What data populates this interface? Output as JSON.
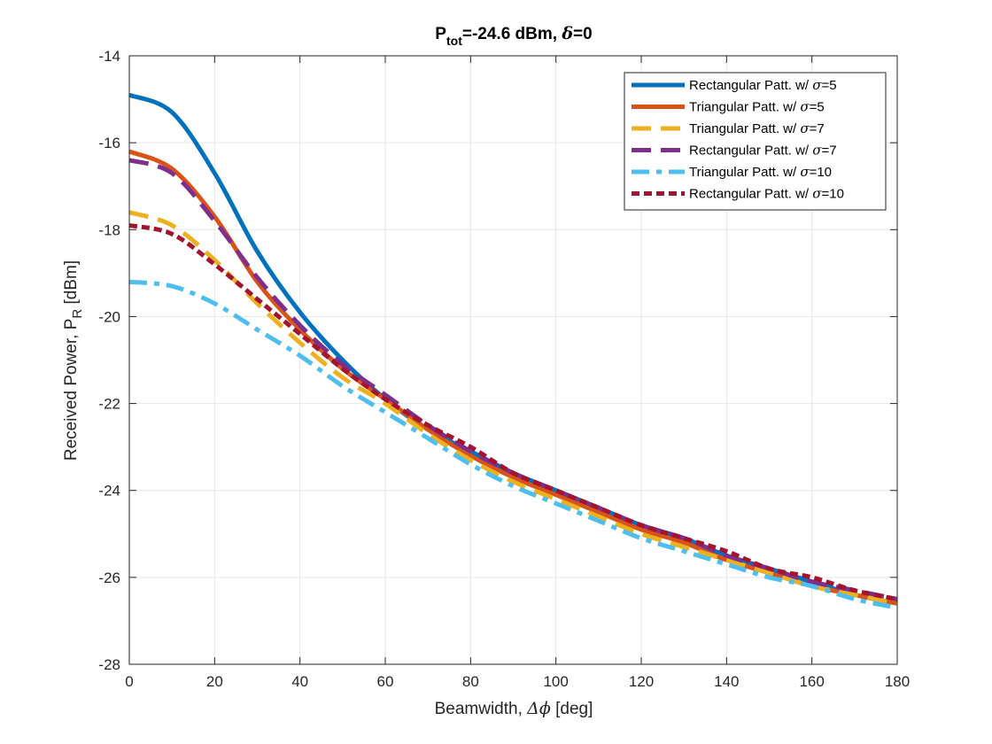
{
  "chart_data": {
    "type": "line",
    "title": "P_tot=-24.6 dBm, δ=0",
    "title_parts": {
      "main": "P",
      "sub": "tot",
      "rest": "=-24.6 dBm, ",
      "delta": "δ",
      "tail": "=0"
    },
    "xlabel": "Beamwidth, Δϕ [deg]",
    "xlabel_parts": {
      "prefix": "Beamwidth, ",
      "sym": "Δϕ",
      "suffix": " [deg]"
    },
    "ylabel": "Received Power, P_R [dBm]",
    "ylabel_parts": {
      "prefix": "Received Power, P",
      "sub": "R",
      "suffix": " [dBm]"
    },
    "xlim": [
      0,
      180
    ],
    "ylim": [
      -28,
      -14
    ],
    "xticks": [
      0,
      20,
      40,
      60,
      80,
      100,
      120,
      140,
      160,
      180
    ],
    "yticks": [
      -28,
      -26,
      -24,
      -22,
      -20,
      -18,
      -16,
      -14
    ],
    "grid": true,
    "legend_position": "top-right",
    "x": [
      0,
      10,
      20,
      30,
      40,
      50,
      60,
      70,
      80,
      90,
      100,
      110,
      120,
      130,
      140,
      150,
      160,
      170,
      180
    ],
    "series": [
      {
        "name": "Rectangular Patt. w/ σ=5",
        "label_prefix": "Rectangular Patt. w/ ",
        "sigma": "σ",
        "label_suffix": "=5",
        "color": "#0072BD",
        "style": "solid",
        "values": [
          -14.9,
          -15.3,
          -16.7,
          -18.5,
          -19.9,
          -21.0,
          -21.9,
          -22.6,
          -23.1,
          -23.6,
          -24.0,
          -24.4,
          -24.8,
          -25.1,
          -25.5,
          -25.8,
          -26.1,
          -26.4,
          -26.6
        ]
      },
      {
        "name": "Triangular Patt. w/ σ=5",
        "label_prefix": "Triangular Patt. w/ ",
        "sigma": "σ",
        "label_suffix": "=5",
        "color": "#D95319",
        "style": "solid",
        "values": [
          -16.2,
          -16.6,
          -17.7,
          -19.2,
          -20.3,
          -21.2,
          -21.9,
          -22.6,
          -23.2,
          -23.7,
          -24.1,
          -24.5,
          -24.9,
          -25.2,
          -25.6,
          -25.9,
          -26.2,
          -26.4,
          -26.6
        ]
      },
      {
        "name": "Triangular Patt. w/ σ=7",
        "label_prefix": "Triangular Patt. w/ ",
        "sigma": "σ",
        "label_suffix": "=7",
        "color": "#EDB120",
        "style": "dashed",
        "values": [
          -17.6,
          -17.9,
          -18.7,
          -19.7,
          -20.6,
          -21.4,
          -22.0,
          -22.7,
          -23.3,
          -23.8,
          -24.2,
          -24.6,
          -25.0,
          -25.3,
          -25.6,
          -25.9,
          -26.2,
          -26.4,
          -26.6
        ]
      },
      {
        "name": "Rectangular Patt. w/ σ=7",
        "label_prefix": "Rectangular Patt. w/ ",
        "sigma": "σ",
        "label_suffix": "=7",
        "color": "#7E2F8E",
        "style": "dashed",
        "values": [
          -16.4,
          -16.7,
          -17.8,
          -19.1,
          -20.2,
          -21.1,
          -21.8,
          -22.5,
          -23.1,
          -23.6,
          -24.0,
          -24.4,
          -24.8,
          -25.1,
          -25.5,
          -25.8,
          -26.1,
          -26.3,
          -26.5
        ]
      },
      {
        "name": "Triangular Patt. w/ σ=10",
        "label_prefix": "Triangular Patt. w/ ",
        "sigma": "σ",
        "label_suffix": "=10",
        "color": "#4DBEEE",
        "style": "dashdot",
        "values": [
          -19.2,
          -19.3,
          -19.7,
          -20.3,
          -20.9,
          -21.6,
          -22.2,
          -22.8,
          -23.4,
          -23.9,
          -24.3,
          -24.7,
          -25.1,
          -25.4,
          -25.7,
          -26.0,
          -26.2,
          -26.5,
          -26.7
        ]
      },
      {
        "name": "Rectangular Patt. w/ σ=10",
        "label_prefix": "Rectangular Patt. w/ ",
        "sigma": "σ",
        "label_suffix": "=10",
        "color": "#A2142F",
        "style": "dotted",
        "values": [
          -17.9,
          -18.1,
          -18.8,
          -19.6,
          -20.4,
          -21.2,
          -21.9,
          -22.5,
          -23.0,
          -23.6,
          -24.0,
          -24.4,
          -24.8,
          -25.1,
          -25.4,
          -25.8,
          -26.0,
          -26.3,
          -26.5
        ]
      }
    ]
  }
}
